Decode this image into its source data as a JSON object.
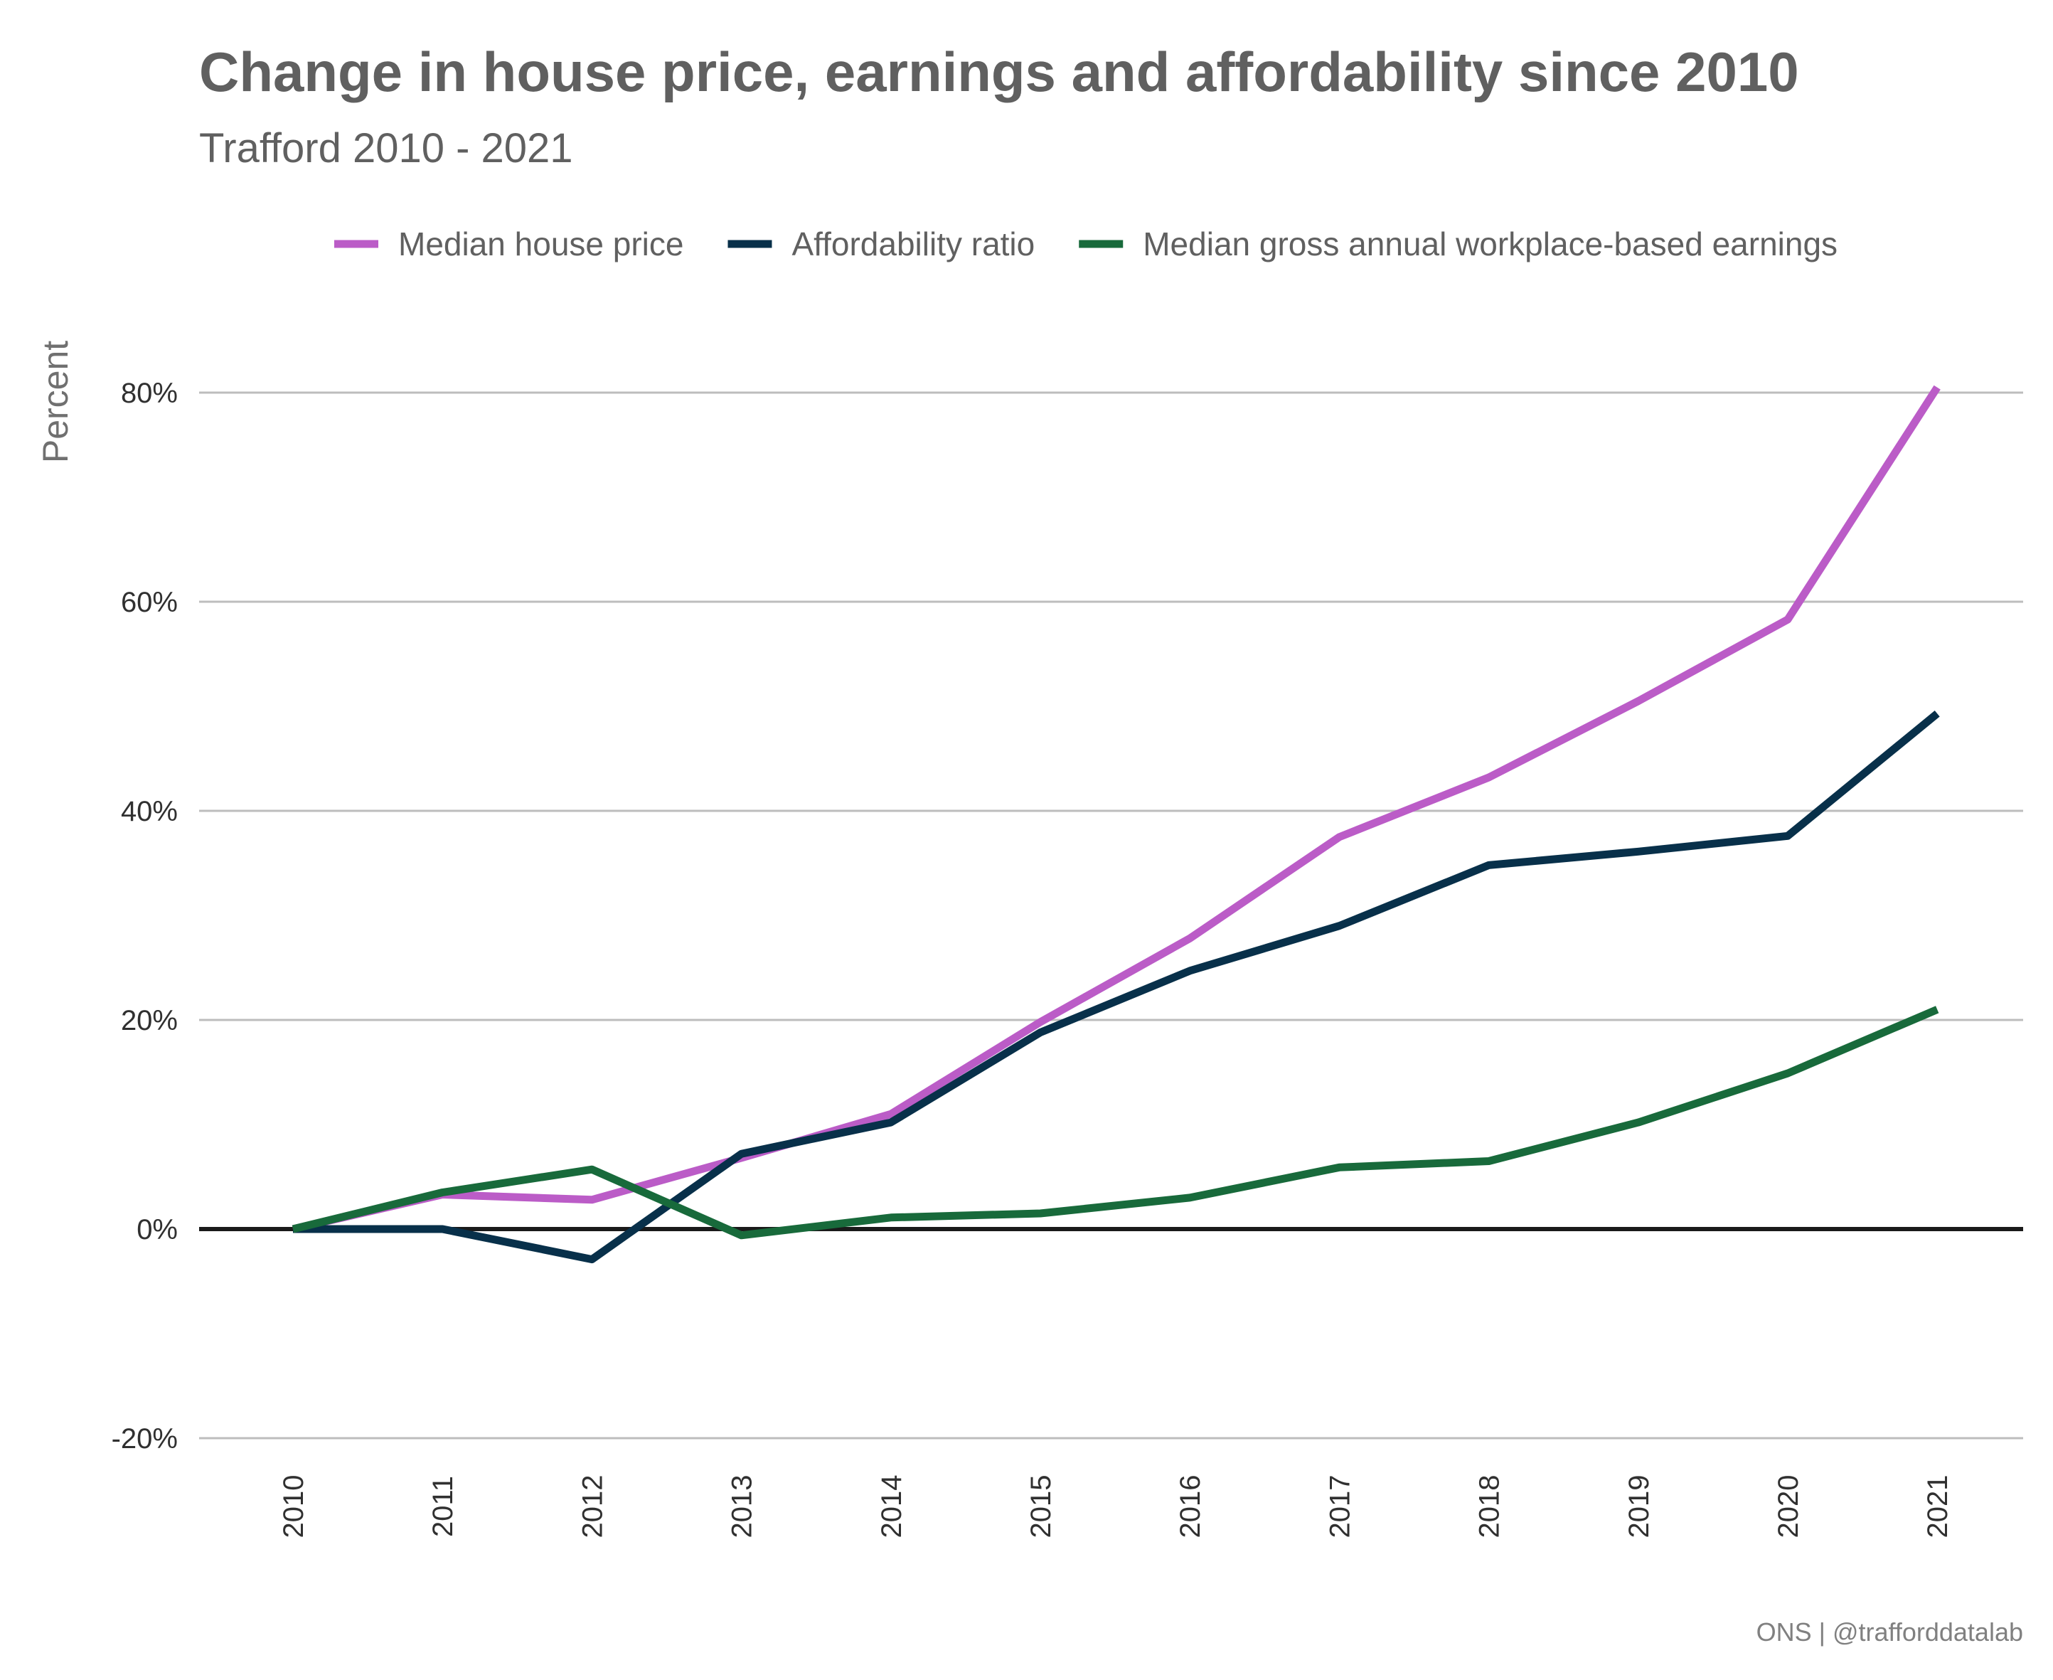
{
  "chart_data": {
    "type": "line",
    "title": "Change in house price, earnings and affordability since 2010",
    "subtitle": "Trafford 2010 - 2021",
    "ylabel": "Percent",
    "xlabel": "",
    "x": [
      "2010",
      "2011",
      "2012",
      "2013",
      "2014",
      "2015",
      "2016",
      "2017",
      "2018",
      "2019",
      "2020",
      "2021"
    ],
    "ylim": [
      -25,
      88
    ],
    "yticks": [
      -20,
      0,
      20,
      40,
      60,
      80
    ],
    "ytick_labels": [
      "-20%",
      "0%",
      "20%",
      "40%",
      "60%",
      "80%"
    ],
    "grid": true,
    "legend_position": "top",
    "series": [
      {
        "name": "Median house price",
        "color": "#bb5cc7",
        "values": [
          0,
          3.3,
          2.8,
          6.8,
          11.0,
          19.8,
          27.8,
          37.5,
          43.2,
          50.5,
          58.3,
          80.5
        ]
      },
      {
        "name": "Affordability ratio",
        "color": "#08304a",
        "values": [
          0,
          0,
          -2.9,
          7.2,
          10.2,
          18.8,
          24.7,
          29.0,
          34.8,
          36.1,
          37.6,
          49.3
        ]
      },
      {
        "name": "Median gross annual workplace-based earnings",
        "color": "#186a3b",
        "values": [
          0,
          3.5,
          5.7,
          -0.6,
          1.1,
          1.5,
          3.0,
          5.9,
          6.5,
          10.2,
          14.9,
          21.0
        ]
      }
    ],
    "caption": "ONS | @trafforddatalab"
  }
}
